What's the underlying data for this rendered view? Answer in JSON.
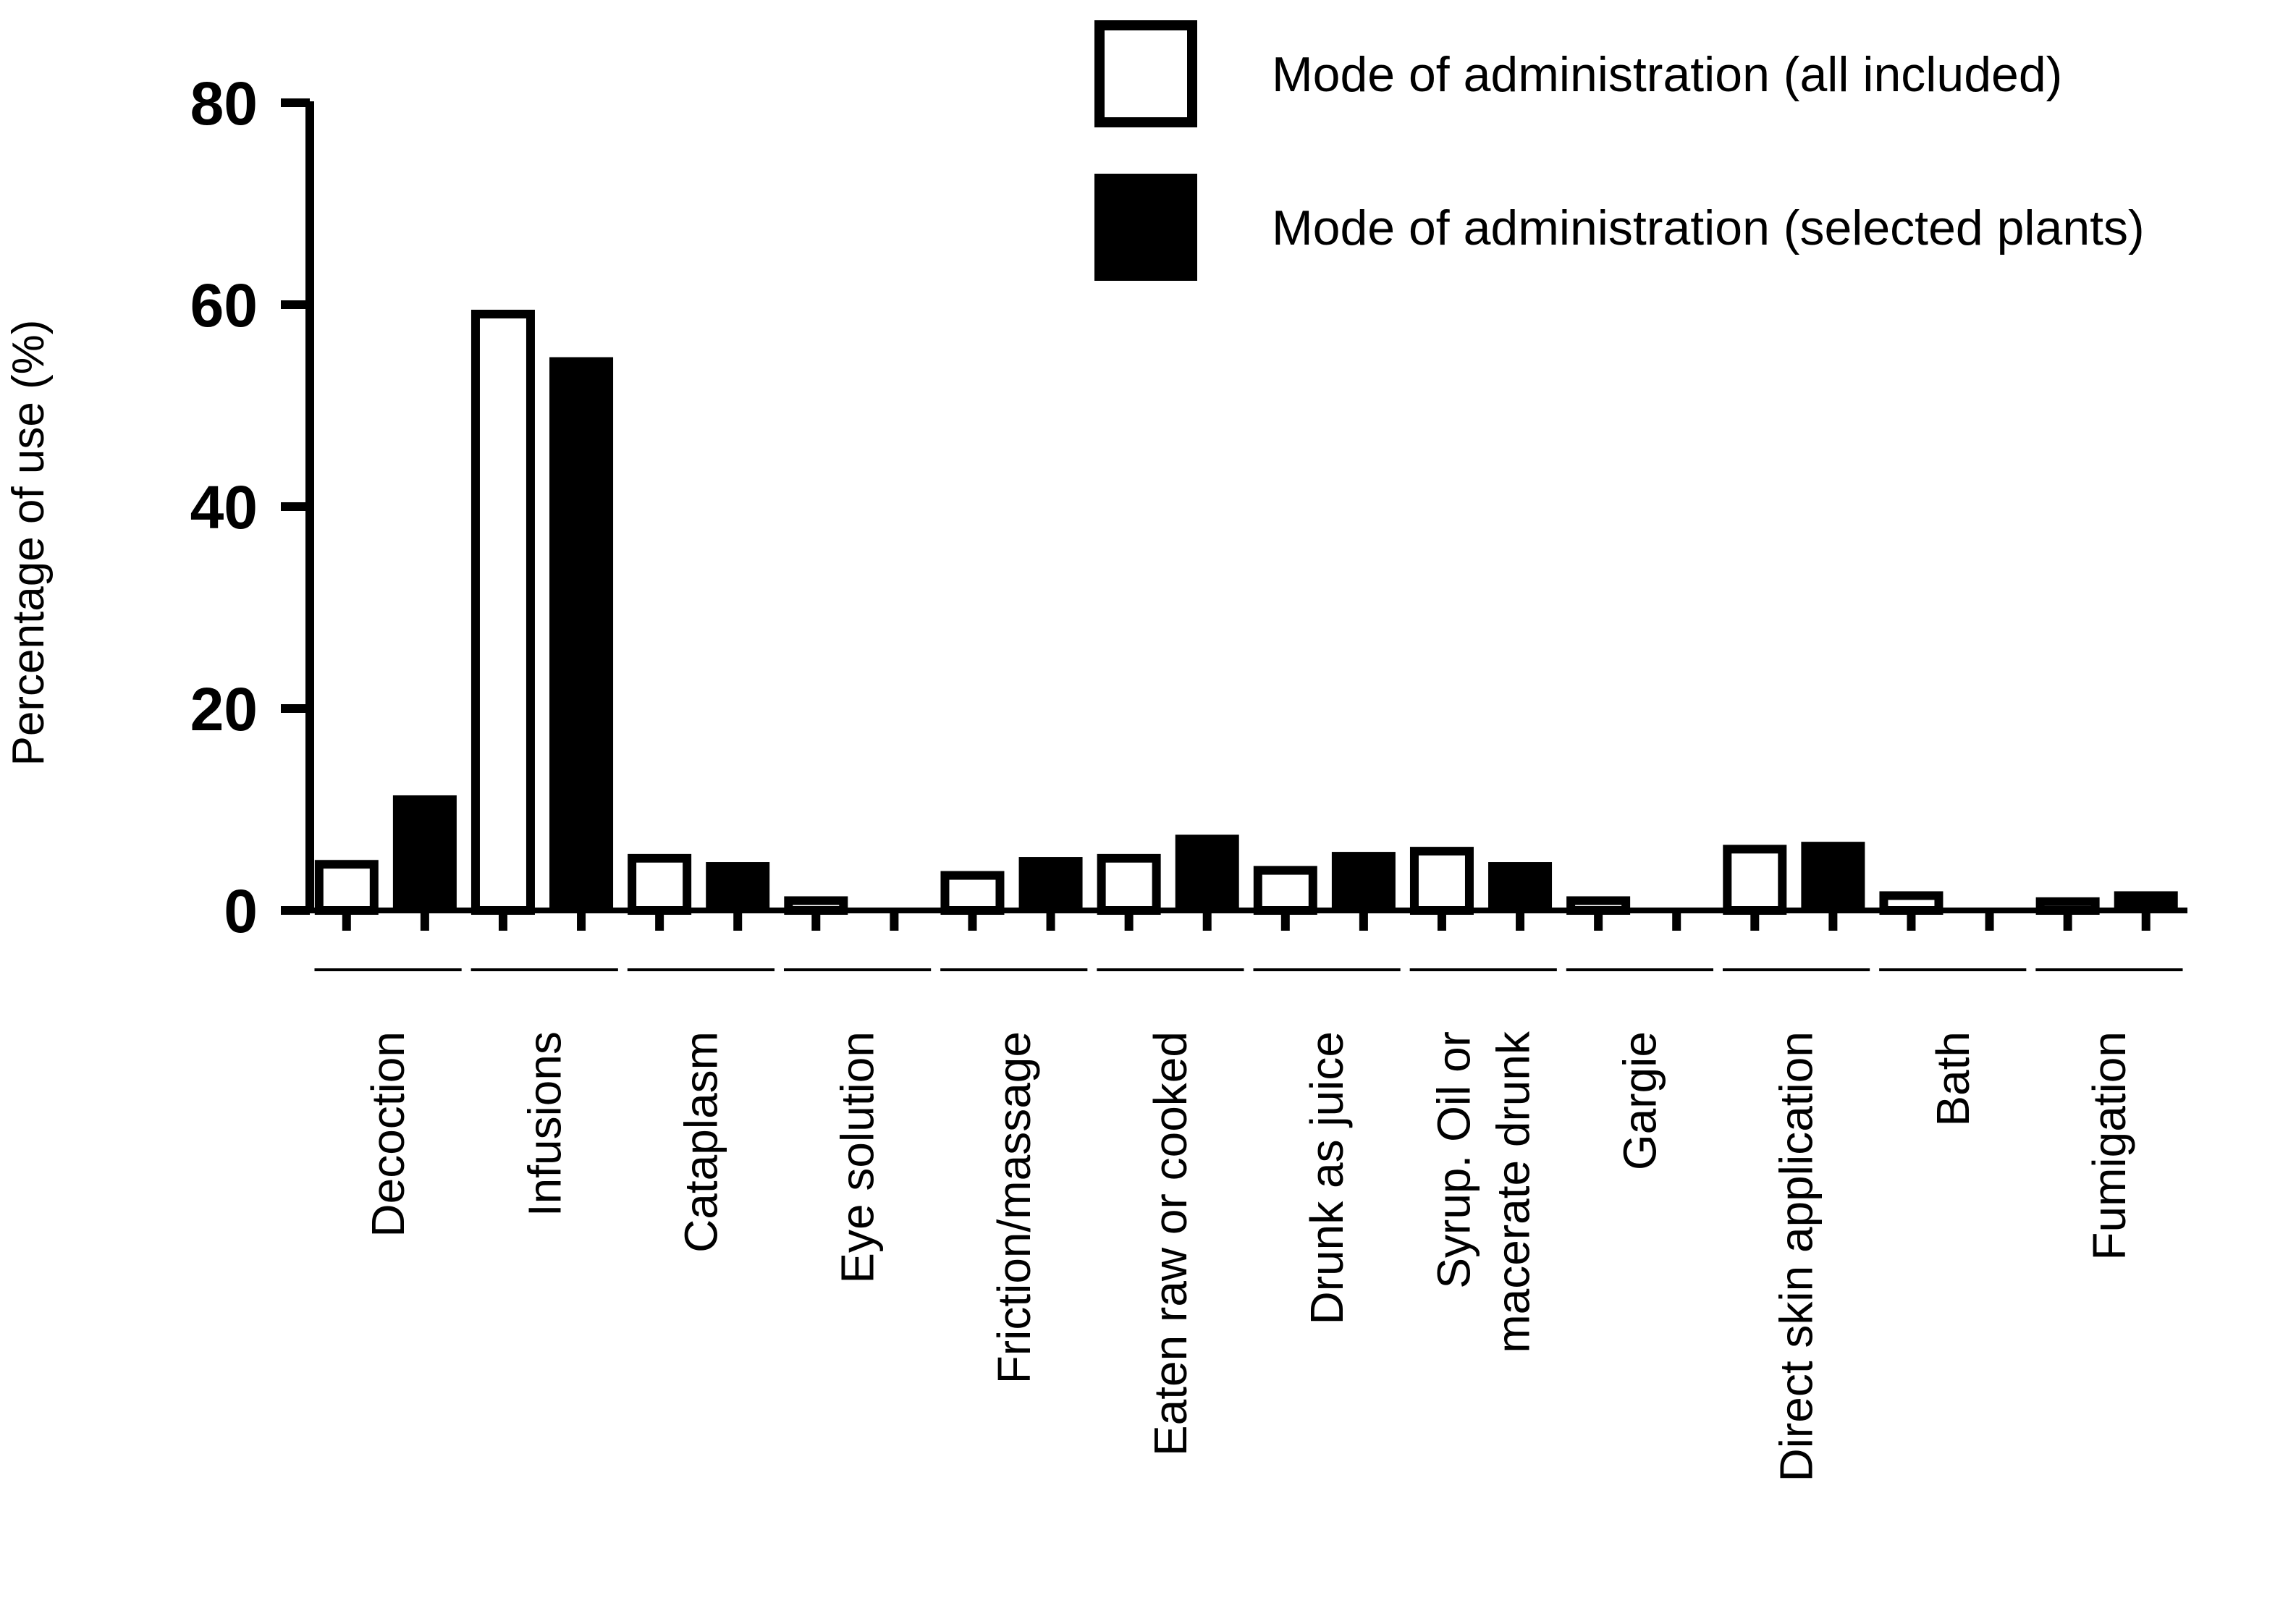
{
  "chart_data": {
    "type": "bar",
    "ylabel": "Percentage of use (%)",
    "xlabel": "",
    "ylim": [
      0,
      80
    ],
    "yticks": [
      "0",
      "20",
      "40",
      "60",
      "80"
    ],
    "legend_position": "top-right",
    "categories": [
      [
        "Decoction"
      ],
      [
        "Infusions"
      ],
      [
        "Cataplasm"
      ],
      [
        "Eye solution"
      ],
      [
        "Friction/massage"
      ],
      [
        "Eaten raw or cooked"
      ],
      [
        "Drunk as juice"
      ],
      [
        "Syrup. Oil or",
        "macerate drunk"
      ],
      [
        "Gargie"
      ],
      [
        "Direct skin application"
      ],
      [
        "Bath"
      ],
      [
        "Fumigation"
      ]
    ],
    "series": [
      {
        "name": "Mode of administration (all included)",
        "fill": "#ffffff",
        "stroke": "#000000",
        "values": [
          5,
          59.5,
          5.6,
          1.4,
          3.9,
          5.6,
          4.4,
          6.3,
          1.4,
          6.5,
          1.9,
          1.3
        ]
      },
      {
        "name": "Mode of administration (selected plants)",
        "fill": "#000000",
        "stroke": "#000000",
        "values": [
          11.4,
          54.8,
          4.8,
          0,
          5.3,
          7.5,
          5.8,
          4.8,
          0,
          6.8,
          0,
          1.9
        ]
      }
    ]
  }
}
